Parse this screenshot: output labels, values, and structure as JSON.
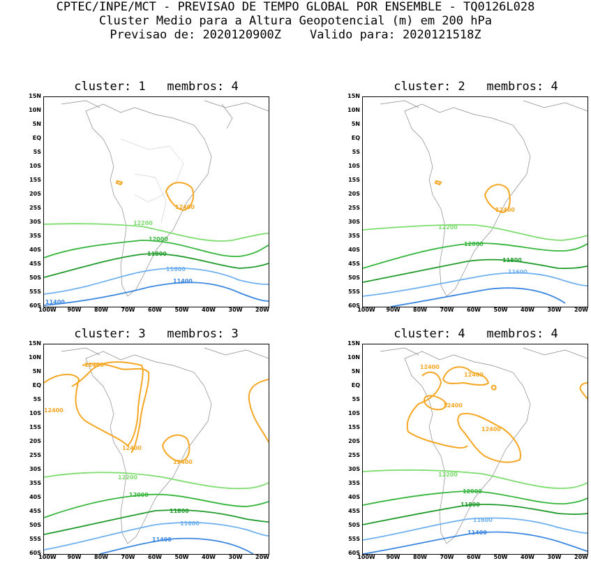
{
  "header": {
    "line1": "CPTEC/INPE/MCT - PREVISAO DE TEMPO GLOBAL POR ENSEMBLE - TQ0126L028",
    "line2": "Cluster Medio para a Altura Geopotencial (m) em 200 hPa",
    "line3": "Previsao de: 2020120900Z    Valido para: 2020121518Z"
  },
  "lat_ticks": [
    "15N",
    "10N",
    "5N",
    "EQ",
    "5S",
    "10S",
    "15S",
    "20S",
    "25S",
    "30S",
    "35S",
    "40S",
    "45S",
    "50S",
    "55S",
    "60S"
  ],
  "lon_ticks": [
    "100W",
    "90W",
    "80W",
    "70W",
    "60W",
    "50W",
    "40W",
    "30W",
    "20W"
  ],
  "contour_colors": {
    "12400": "#f5a623",
    "12200": "#7ddc6e",
    "12000": "#33b43a",
    "11800": "#1e9a2a",
    "11600": "#6fb0f0",
    "11400": "#3a86e0",
    "coast": "#888888"
  },
  "panels": [
    {
      "title": "cluster: 1   membros: 4",
      "labels": {
        "c12400": "12400",
        "c12200": "12200",
        "c12000": "12000",
        "c11800": "11800",
        "c11600": "11600",
        "c11400a": "11400",
        "c11400b": "11400"
      }
    },
    {
      "title": "cluster: 2   membros: 4",
      "labels": {
        "c12400": "12400",
        "c12200": "12200",
        "c12000": "12000",
        "c11800": "11800",
        "c11600": "11600"
      }
    },
    {
      "title": "cluster: 3   membros: 3",
      "labels": {
        "c12400a": "12400",
        "c12400b": "12400",
        "c12400c": "12400",
        "c12400d": "12400",
        "c12200": "12200",
        "c12000": "12000",
        "c11800": "11800",
        "c11600": "11600",
        "c11400": "11400"
      }
    },
    {
      "title": "cluster: 4   membros: 4",
      "labels": {
        "c12400a": "12400",
        "c12400b": "12400",
        "c12400c": "12400",
        "c12400d": "12400",
        "c12200": "12200",
        "c12000": "12000",
        "c11800": "11800",
        "c11600": "11600",
        "c11400": "11400"
      }
    }
  ]
}
